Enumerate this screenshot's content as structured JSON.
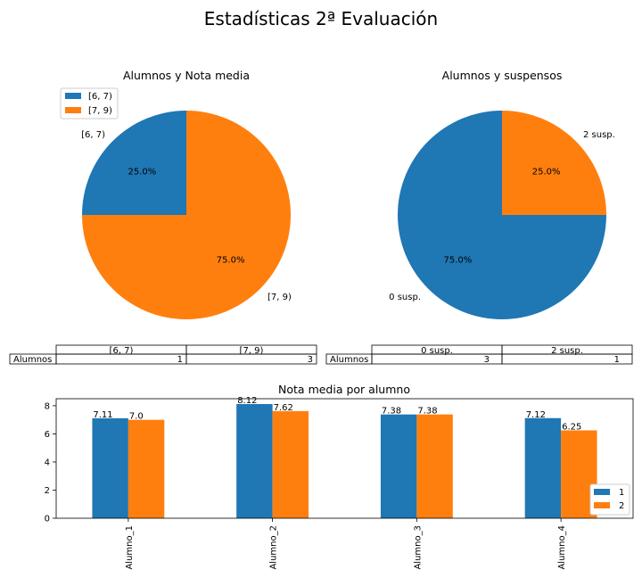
{
  "figure": {
    "title": "Estadísticas 2ª Evaluación"
  },
  "colors": {
    "blue": "#1f77b4",
    "orange": "#ff7f0e"
  },
  "chart_data": [
    {
      "type": "pie",
      "title": "Alumnos y Nota media",
      "labels": [
        "[6, 7)",
        "[7, 9)"
      ],
      "values": [
        1,
        3
      ],
      "percent_labels": [
        "25.0%",
        "75.0%"
      ],
      "legend": "top-left",
      "table": {
        "row_label": "Alumnos",
        "columns": [
          "[6, 7)",
          "[7, 9)"
        ],
        "values": [
          "1",
          "3"
        ]
      }
    },
    {
      "type": "pie",
      "title": "Alumnos y suspensos",
      "labels": [
        "0 susp.",
        "2 susp."
      ],
      "values": [
        3,
        1
      ],
      "percent_labels": [
        "75.0%",
        "25.0%"
      ],
      "table": {
        "row_label": "Alumnos",
        "columns": [
          "0 susp.",
          "2 susp."
        ],
        "values": [
          "3",
          "1"
        ]
      }
    },
    {
      "type": "bar",
      "title": "Nota media por alumno",
      "categories": [
        "Alumno_1",
        "Alumno_2",
        "Alumno_3",
        "Alumno_4"
      ],
      "series": [
        {
          "name": "1",
          "values": [
            7.11,
            8.12,
            7.38,
            7.12
          ],
          "labels": [
            "7.11",
            "8.12",
            "7.38",
            "7.12"
          ]
        },
        {
          "name": "2",
          "values": [
            7.0,
            7.62,
            7.38,
            6.25
          ],
          "labels": [
            "7.0",
            "7.62",
            "7.38",
            "6.25"
          ]
        }
      ],
      "yticks": [
        "0",
        "2",
        "4",
        "6",
        "8"
      ],
      "ylim": [
        0,
        8.5
      ],
      "legend": "lower-right",
      "grid": false
    }
  ]
}
